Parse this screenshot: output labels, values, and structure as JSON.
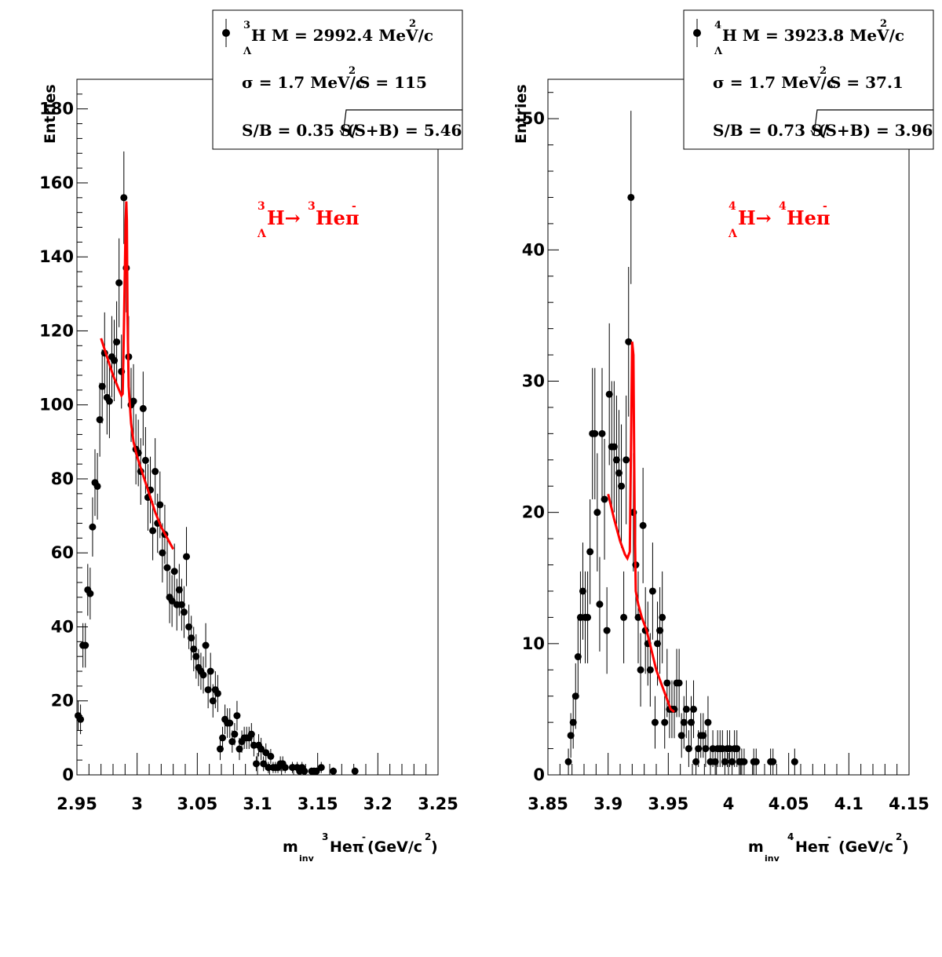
{
  "colors": {
    "data": "#000000",
    "fit": "#ff0000",
    "background": "#ffffff"
  },
  "chart_data": [
    {
      "type": "scatter",
      "ylabel": "Entries",
      "xlabel_prefix": "m",
      "xlabel_sub": "inv",
      "xlabel_iso": "3",
      "xlabel_main": "Heπ",
      "xlabel_charge": "-",
      "xlabel_unit": "(GeV/c",
      "xlabel_unit_exp": "2",
      "xlabel_close": ")",
      "xlim": [
        2.95,
        3.25
      ],
      "ylim": [
        0,
        188
      ],
      "xticks": [
        "2.95",
        "3",
        "3.05",
        "3.1",
        "3.15",
        "3.2",
        "3.25"
      ],
      "yticks": [
        "0",
        "20",
        "40",
        "60",
        "80",
        "100",
        "120",
        "140",
        "160",
        "180"
      ],
      "reaction": {
        "hyp_a": "3",
        "hyp_sub": "Λ",
        "hyp": "H→",
        "prod_a": "3",
        "prod": "Heπ",
        "prod_charge": "-"
      },
      "legend": {
        "l1_a": "3",
        "l1_sub": "Λ",
        "l1_text": "H M = 2992.4 MeV/c",
        "l1_exp": "2",
        "l2_text": "σ = 1.7 MeV/c",
        "l2_exp": "2",
        "l2_text2": "S =  115",
        "l3_text": "S/B = 0.35  S/",
        "l3_text2": "(S+B) = 5.46"
      },
      "points": [
        [
          2.951,
          16,
          4
        ],
        [
          2.953,
          15,
          4
        ],
        [
          2.955,
          35,
          6
        ],
        [
          2.957,
          35,
          6
        ],
        [
          2.959,
          50,
          7
        ],
        [
          2.961,
          49,
          7
        ],
        [
          2.963,
          67,
          8
        ],
        [
          2.965,
          79,
          9
        ],
        [
          2.967,
          78,
          9
        ],
        [
          2.969,
          96,
          10
        ],
        [
          2.971,
          105,
          10
        ],
        [
          2.973,
          114,
          11
        ],
        [
          2.975,
          102,
          10
        ],
        [
          2.977,
          101,
          10
        ],
        [
          2.979,
          113,
          11
        ],
        [
          2.981,
          112,
          11
        ],
        [
          2.983,
          117,
          11
        ],
        [
          2.985,
          133,
          12
        ],
        [
          2.987,
          109,
          10
        ],
        [
          2.989,
          156,
          12.5
        ],
        [
          2.991,
          137,
          12
        ],
        [
          2.993,
          113,
          11
        ],
        [
          2.995,
          100,
          10
        ],
        [
          2.997,
          101,
          10
        ],
        [
          2.999,
          88,
          9.5
        ],
        [
          3.001,
          87,
          9
        ],
        [
          3.003,
          82,
          9
        ],
        [
          3.005,
          99,
          10
        ],
        [
          3.007,
          85,
          9
        ],
        [
          3.009,
          75,
          9
        ],
        [
          3.011,
          77,
          9
        ],
        [
          3.013,
          66,
          8
        ],
        [
          3.015,
          82,
          9
        ],
        [
          3.017,
          68,
          8
        ],
        [
          3.019,
          73,
          9
        ],
        [
          3.021,
          60,
          8
        ],
        [
          3.023,
          65,
          8
        ],
        [
          3.025,
          56,
          7.5
        ],
        [
          3.027,
          48,
          7
        ],
        [
          3.029,
          47,
          7
        ],
        [
          3.031,
          55,
          7.5
        ],
        [
          3.033,
          46,
          7
        ],
        [
          3.035,
          50,
          7
        ],
        [
          3.037,
          46,
          7
        ],
        [
          3.039,
          44,
          7
        ],
        [
          3.041,
          59,
          8
        ],
        [
          3.043,
          40,
          6
        ],
        [
          3.045,
          37,
          6
        ],
        [
          3.047,
          34,
          6
        ],
        [
          3.049,
          32,
          6
        ],
        [
          3.051,
          29,
          5
        ],
        [
          3.053,
          28,
          5
        ],
        [
          3.055,
          27,
          5
        ],
        [
          3.057,
          35,
          6
        ],
        [
          3.059,
          23,
          5
        ],
        [
          3.061,
          28,
          5
        ],
        [
          3.063,
          20,
          4.5
        ],
        [
          3.065,
          23,
          5
        ],
        [
          3.067,
          22,
          5
        ],
        [
          3.069,
          7,
          3
        ],
        [
          3.071,
          10,
          3
        ],
        [
          3.073,
          15,
          4
        ],
        [
          3.075,
          14,
          4
        ],
        [
          3.077,
          14,
          4
        ],
        [
          3.079,
          9,
          3
        ],
        [
          3.081,
          11,
          3
        ],
        [
          3.083,
          16,
          4
        ],
        [
          3.085,
          7,
          3
        ],
        [
          3.087,
          9,
          3
        ],
        [
          3.089,
          10,
          3
        ],
        [
          3.091,
          10,
          3
        ],
        [
          3.093,
          10,
          3
        ],
        [
          3.095,
          11,
          3
        ],
        [
          3.097,
          8,
          3
        ],
        [
          3.099,
          3,
          2
        ],
        [
          3.101,
          8,
          3
        ],
        [
          3.103,
          7,
          3
        ],
        [
          3.105,
          3,
          2
        ],
        [
          3.107,
          6,
          2.5
        ],
        [
          3.109,
          2,
          1.5
        ],
        [
          3.111,
          5,
          2
        ],
        [
          3.113,
          2,
          1.5
        ],
        [
          3.115,
          2,
          1.5
        ],
        [
          3.117,
          2,
          1.5
        ],
        [
          3.119,
          3,
          2
        ],
        [
          3.121,
          3,
          2
        ],
        [
          3.123,
          2,
          1.5
        ],
        [
          3.129,
          2,
          1.5
        ],
        [
          3.133,
          2,
          1.5
        ],
        [
          3.135,
          1,
          1
        ],
        [
          3.137,
          2,
          1.5
        ],
        [
          3.139,
          1,
          1
        ],
        [
          3.145,
          1,
          1
        ],
        [
          3.147,
          1,
          1
        ],
        [
          3.149,
          1,
          1
        ],
        [
          3.153,
          2,
          1.5
        ],
        [
          3.163,
          1,
          1
        ],
        [
          3.181,
          1,
          1
        ]
      ],
      "fit": [
        [
          2.97,
          118
        ],
        [
          2.975,
          113
        ],
        [
          2.98,
          108
        ],
        [
          2.985,
          104
        ],
        [
          2.987,
          102.5
        ],
        [
          2.988,
          103
        ],
        [
          2.989,
          120
        ],
        [
          2.9905,
          150
        ],
        [
          2.991,
          155
        ],
        [
          2.9915,
          150
        ],
        [
          2.992,
          125
        ],
        [
          2.993,
          105
        ],
        [
          2.995,
          95
        ],
        [
          2.997,
          90
        ],
        [
          3.0,
          86
        ],
        [
          3.005,
          81
        ],
        [
          3.01,
          76
        ],
        [
          3.015,
          71
        ],
        [
          3.02,
          67
        ],
        [
          3.025,
          64
        ],
        [
          3.03,
          61
        ]
      ]
    },
    {
      "type": "scatter",
      "ylabel": "Entries",
      "xlabel_prefix": "m",
      "xlabel_sub": "inv",
      "xlabel_iso": "4",
      "xlabel_main": "Heπ",
      "xlabel_charge": "-",
      "xlabel_unit": "(GeV/c",
      "xlabel_unit_exp": "2",
      "xlabel_close": ")",
      "xlim": [
        3.85,
        4.15
      ],
      "ylim": [
        0,
        53
      ],
      "xticks": [
        "3.85",
        "3.9",
        "3.95",
        "4",
        "4.05",
        "4.1",
        "4.15"
      ],
      "yticks": [
        "0",
        "10",
        "20",
        "30",
        "40",
        "50"
      ],
      "reaction": {
        "hyp_a": "4",
        "hyp_sub": "Λ",
        "hyp": "H→",
        "prod_a": "4",
        "prod": "Heπ",
        "prod_charge": "-"
      },
      "legend": {
        "l1_a": "4",
        "l1_sub": "Λ",
        "l1_text": "H M = 3923.8 MeV/c",
        "l1_exp": "2",
        "l2_text": "σ = 1.7 MeV/c",
        "l2_exp": "2",
        "l2_text2": "S = 37.1",
        "l3_text": "S/B = 0.73  S/",
        "l3_text2": "(S+B) = 3.96"
      },
      "points": [
        [
          3.867,
          1,
          1
        ],
        [
          3.869,
          3,
          1.7
        ],
        [
          3.871,
          4,
          2
        ],
        [
          3.873,
          6,
          2.5
        ],
        [
          3.875,
          9,
          3
        ],
        [
          3.877,
          12,
          3.5
        ],
        [
          3.879,
          14,
          3.7
        ],
        [
          3.881,
          12,
          3.5
        ],
        [
          3.883,
          12,
          3.5
        ],
        [
          3.885,
          17,
          4
        ],
        [
          3.887,
          26,
          5
        ],
        [
          3.889,
          26,
          5
        ],
        [
          3.891,
          20,
          4.5
        ],
        [
          3.893,
          13,
          3.6
        ],
        [
          3.895,
          26,
          5
        ],
        [
          3.897,
          21,
          4.6
        ],
        [
          3.899,
          11,
          3.3
        ],
        [
          3.901,
          29,
          5.4
        ],
        [
          3.903,
          25,
          5
        ],
        [
          3.905,
          25,
          5
        ],
        [
          3.907,
          24,
          4.9
        ],
        [
          3.909,
          23,
          4.8
        ],
        [
          3.911,
          22,
          4.7
        ],
        [
          3.913,
          12,
          3.5
        ],
        [
          3.915,
          24,
          4.9
        ],
        [
          3.917,
          33,
          5.7
        ],
        [
          3.919,
          44,
          6.6
        ],
        [
          3.921,
          20,
          4.5
        ],
        [
          3.923,
          16,
          4
        ],
        [
          3.925,
          12,
          3.5
        ],
        [
          3.927,
          8,
          2.8
        ],
        [
          3.929,
          19,
          4.4
        ],
        [
          3.931,
          11,
          3.3
        ],
        [
          3.933,
          10,
          3.2
        ],
        [
          3.935,
          8,
          2.8
        ],
        [
          3.937,
          14,
          3.7
        ],
        [
          3.939,
          4,
          2
        ],
        [
          3.941,
          10,
          3.2
        ],
        [
          3.943,
          11,
          3.3
        ],
        [
          3.945,
          12,
          3.5
        ],
        [
          3.947,
          4,
          2
        ],
        [
          3.949,
          7,
          2.6
        ],
        [
          3.951,
          5,
          2.2
        ],
        [
          3.953,
          5,
          2.2
        ],
        [
          3.955,
          5,
          2.2
        ],
        [
          3.957,
          7,
          2.6
        ],
        [
          3.959,
          7,
          2.6
        ],
        [
          3.961,
          3,
          1.7
        ],
        [
          3.963,
          4,
          2
        ],
        [
          3.965,
          5,
          2.2
        ],
        [
          3.967,
          2,
          1.4
        ],
        [
          3.969,
          4,
          2
        ],
        [
          3.971,
          5,
          2.2
        ],
        [
          3.973,
          1,
          1
        ],
        [
          3.975,
          2,
          1.4
        ],
        [
          3.977,
          3,
          1.7
        ],
        [
          3.979,
          3,
          1.7
        ],
        [
          3.981,
          2,
          1.4
        ],
        [
          3.983,
          4,
          2
        ],
        [
          3.985,
          1,
          1
        ],
        [
          3.987,
          2,
          1.4
        ],
        [
          3.989,
          1,
          1
        ],
        [
          3.991,
          2,
          1.4
        ],
        [
          3.993,
          2,
          1.4
        ],
        [
          3.995,
          2,
          1.4
        ],
        [
          3.997,
          1,
          1
        ],
        [
          3.999,
          2,
          1.4
        ],
        [
          4.001,
          2,
          1.4
        ],
        [
          4.003,
          1,
          1
        ],
        [
          4.005,
          2,
          1.4
        ],
        [
          4.007,
          2,
          1.4
        ],
        [
          4.009,
          1,
          1
        ],
        [
          4.011,
          1,
          1
        ],
        [
          4.013,
          1,
          1
        ],
        [
          4.021,
          1,
          1
        ],
        [
          4.023,
          1,
          1
        ],
        [
          4.035,
          1,
          1
        ],
        [
          4.037,
          1,
          1
        ],
        [
          4.055,
          1,
          1
        ]
      ],
      "fit": [
        [
          3.9,
          21.4
        ],
        [
          3.905,
          19.5
        ],
        [
          3.91,
          17.8
        ],
        [
          3.914,
          16.8
        ],
        [
          3.916,
          16.5
        ],
        [
          3.918,
          17
        ],
        [
          3.919,
          25
        ],
        [
          3.92,
          33
        ],
        [
          3.921,
          32
        ],
        [
          3.922,
          20
        ],
        [
          3.923,
          14
        ],
        [
          3.925,
          13
        ],
        [
          3.928,
          12
        ],
        [
          3.932,
          11
        ],
        [
          3.936,
          9.5
        ],
        [
          3.94,
          8
        ],
        [
          3.944,
          7
        ],
        [
          3.948,
          6
        ],
        [
          3.952,
          5
        ],
        [
          3.955,
          4.8
        ]
      ]
    }
  ]
}
